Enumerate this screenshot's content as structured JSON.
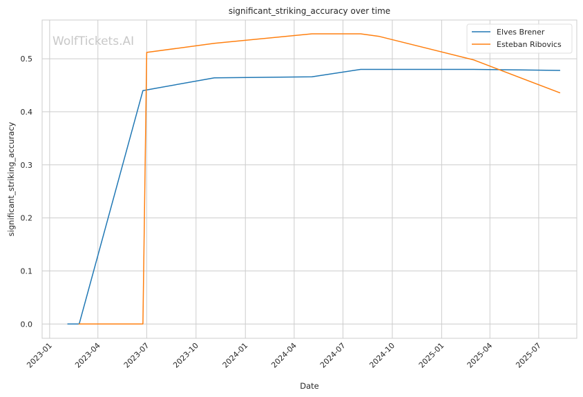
{
  "chart_data": {
    "type": "line",
    "title": "significant_striking_accuracy over time",
    "xlabel": "Date",
    "ylabel": "significant_striking_accuracy",
    "watermark": "WolfTickets.AI",
    "x_ticks": [
      "2023-01",
      "2023-04",
      "2023-07",
      "2023-10",
      "2024-01",
      "2024-04",
      "2024-07",
      "2024-10",
      "2025-01",
      "2025-04",
      "2025-07"
    ],
    "y_ticks": [
      "0.0",
      "0.1",
      "0.2",
      "0.3",
      "0.4",
      "0.5"
    ],
    "xlim": [
      "2022-12-18",
      "2025-09-10"
    ],
    "ylim": [
      -0.027,
      0.573
    ],
    "grid": true,
    "legend_position": "top-right",
    "series": [
      {
        "name": "Elves Brener",
        "color": "#1f77b4",
        "points": [
          {
            "x": "2023-02-04",
            "y": 0.0
          },
          {
            "x": "2023-02-25",
            "y": 0.0
          },
          {
            "x": "2023-06-24",
            "y": 0.44
          },
          {
            "x": "2023-11-04",
            "y": 0.464
          },
          {
            "x": "2024-05-04",
            "y": 0.466
          },
          {
            "x": "2024-08-03",
            "y": 0.48
          },
          {
            "x": "2025-03-01",
            "y": 0.48
          },
          {
            "x": "2025-08-09",
            "y": 0.478
          }
        ]
      },
      {
        "name": "Esteban Ribovics",
        "color": "#ff7f0e",
        "points": [
          {
            "x": "2023-02-25",
            "y": 0.0
          },
          {
            "x": "2023-06-24",
            "y": 0.0
          },
          {
            "x": "2023-07-01",
            "y": 0.512
          },
          {
            "x": "2023-11-04",
            "y": 0.529
          },
          {
            "x": "2024-05-04",
            "y": 0.547
          },
          {
            "x": "2024-08-03",
            "y": 0.547
          },
          {
            "x": "2024-09-07",
            "y": 0.542
          },
          {
            "x": "2025-03-01",
            "y": 0.498
          },
          {
            "x": "2025-08-09",
            "y": 0.436
          }
        ]
      }
    ]
  }
}
